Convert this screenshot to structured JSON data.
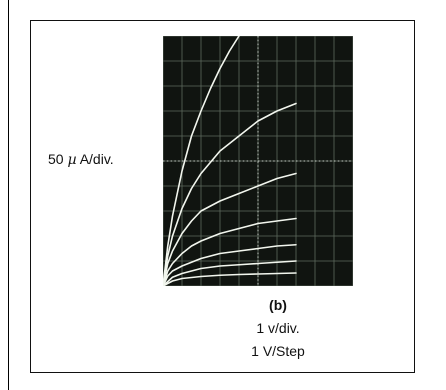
{
  "chart_data": {
    "type": "line",
    "title": "(b)",
    "ylabel": "50 µ A/div.",
    "xlabels": [
      "1 v/div.",
      "1 V/Step"
    ],
    "divisions": {
      "x": 10,
      "y": 10
    },
    "grid": true,
    "xlim": [
      0,
      10
    ],
    "ylim": [
      0,
      10
    ],
    "series": [
      {
        "values": [
          [
            0,
            0
          ],
          [
            0.25,
            1.6
          ],
          [
            0.5,
            2.8
          ],
          [
            1,
            4.6
          ],
          [
            1.5,
            6.0
          ],
          [
            2,
            7.0
          ],
          [
            2.5,
            7.9
          ],
          [
            3,
            8.7
          ],
          [
            3.5,
            9.4
          ],
          [
            4,
            10.0
          ]
        ]
      },
      {
        "values": [
          [
            0,
            0
          ],
          [
            0.25,
            1.2
          ],
          [
            0.5,
            2.0
          ],
          [
            1,
            3.1
          ],
          [
            1.5,
            3.9
          ],
          [
            2,
            4.5
          ],
          [
            3,
            5.4
          ],
          [
            4,
            6.0
          ],
          [
            5,
            6.6
          ],
          [
            6,
            7.0
          ],
          [
            7,
            7.3
          ]
        ]
      },
      {
        "values": [
          [
            0,
            0
          ],
          [
            0.25,
            0.9
          ],
          [
            0.5,
            1.4
          ],
          [
            1,
            2.1
          ],
          [
            1.5,
            2.6
          ],
          [
            2,
            3.0
          ],
          [
            3,
            3.4
          ],
          [
            4,
            3.7
          ],
          [
            5,
            4.0
          ],
          [
            6,
            4.3
          ],
          [
            7,
            4.5
          ]
        ]
      },
      {
        "values": [
          [
            0,
            0
          ],
          [
            0.25,
            0.6
          ],
          [
            0.5,
            0.9
          ],
          [
            1,
            1.3
          ],
          [
            1.5,
            1.6
          ],
          [
            2,
            1.8
          ],
          [
            3,
            2.1
          ],
          [
            4,
            2.3
          ],
          [
            5,
            2.5
          ],
          [
            6,
            2.6
          ],
          [
            7,
            2.7
          ]
        ]
      },
      {
        "values": [
          [
            0,
            0
          ],
          [
            0.25,
            0.4
          ],
          [
            0.5,
            0.6
          ],
          [
            1,
            0.8
          ],
          [
            2,
            1.1
          ],
          [
            3,
            1.3
          ],
          [
            4,
            1.4
          ],
          [
            5,
            1.5
          ],
          [
            6,
            1.6
          ],
          [
            7,
            1.65
          ]
        ]
      },
      {
        "values": [
          [
            0,
            0
          ],
          [
            0.5,
            0.35
          ],
          [
            1,
            0.5
          ],
          [
            2,
            0.7
          ],
          [
            3,
            0.8
          ],
          [
            4,
            0.85
          ],
          [
            5,
            0.9
          ],
          [
            6,
            0.95
          ],
          [
            7,
            1.0
          ]
        ]
      },
      {
        "values": [
          [
            0,
            0
          ],
          [
            0.5,
            0.2
          ],
          [
            1,
            0.3
          ],
          [
            2,
            0.38
          ],
          [
            3,
            0.43
          ],
          [
            4,
            0.46
          ],
          [
            5,
            0.48
          ],
          [
            6,
            0.5
          ],
          [
            7,
            0.52
          ]
        ]
      }
    ],
    "colors": {
      "screen": "#101410",
      "grid": "#5e6a5e",
      "graticule": "#c8d0c8",
      "trace": "#f2f6ee"
    }
  }
}
